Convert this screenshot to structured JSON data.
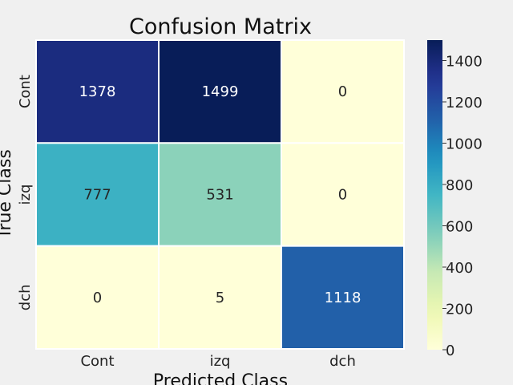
{
  "chart_data": {
    "type": "heatmap",
    "title": "Confusion Matrix",
    "xlabel": "Predicted Class",
    "ylabel": "True Class",
    "x_categories": [
      "Cont",
      "izq",
      "dch"
    ],
    "y_categories": [
      "Cont",
      "izq",
      "dch"
    ],
    "values": [
      [
        1378,
        1499,
        0
      ],
      [
        777,
        531,
        0
      ],
      [
        0,
        5,
        1118
      ]
    ],
    "colorbar": {
      "min": 0,
      "max": 1499,
      "ticks": [
        0,
        200,
        400,
        600,
        800,
        1000,
        1200,
        1400
      ],
      "colormap": "YlGnBu"
    },
    "grid": false
  }
}
